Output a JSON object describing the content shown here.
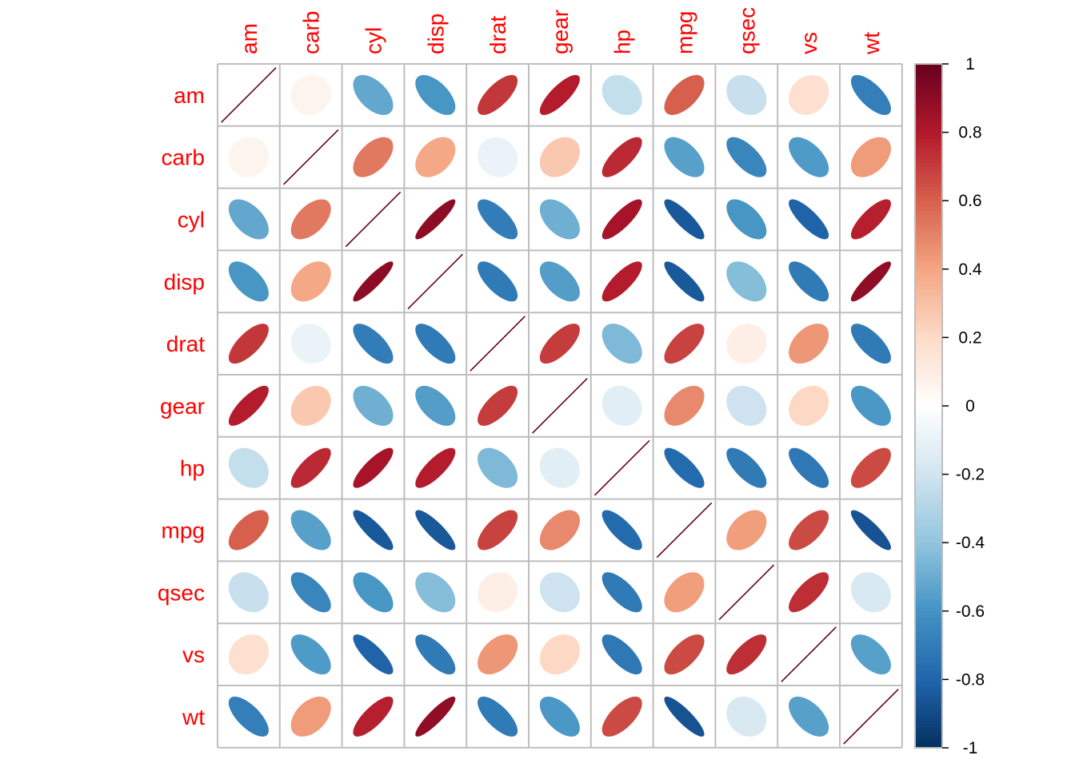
{
  "chart_data": {
    "type": "heatmap",
    "style": "correlation-ellipse",
    "title": "",
    "variables": [
      "am",
      "carb",
      "cyl",
      "disp",
      "drat",
      "gear",
      "hp",
      "mpg",
      "qsec",
      "vs",
      "wt"
    ],
    "matrix": [
      [
        1.0,
        0.06,
        -0.52,
        -0.59,
        0.71,
        0.79,
        -0.24,
        0.6,
        -0.23,
        0.17,
        -0.69
      ],
      [
        0.06,
        1.0,
        0.53,
        0.39,
        -0.09,
        0.27,
        0.75,
        -0.55,
        -0.66,
        -0.57,
        0.43
      ],
      [
        -0.52,
        0.53,
        1.0,
        0.9,
        -0.7,
        -0.49,
        0.83,
        -0.85,
        -0.59,
        -0.81,
        0.78
      ],
      [
        -0.59,
        0.39,
        0.9,
        1.0,
        -0.71,
        -0.56,
        0.79,
        -0.85,
        -0.43,
        -0.71,
        0.89
      ],
      [
        0.71,
        -0.09,
        -0.7,
        -0.71,
        1.0,
        0.7,
        -0.45,
        0.68,
        0.09,
        0.44,
        -0.71
      ],
      [
        0.79,
        0.27,
        -0.49,
        -0.56,
        0.7,
        1.0,
        -0.13,
        0.48,
        -0.21,
        0.21,
        -0.58
      ],
      [
        -0.24,
        0.75,
        0.83,
        0.79,
        -0.45,
        -0.13,
        1.0,
        -0.78,
        -0.71,
        -0.72,
        0.66
      ],
      [
        0.6,
        -0.55,
        -0.85,
        -0.85,
        0.68,
        0.48,
        -0.78,
        1.0,
        0.42,
        0.66,
        -0.87
      ],
      [
        -0.23,
        -0.66,
        -0.59,
        -0.43,
        0.09,
        -0.21,
        -0.71,
        0.42,
        1.0,
        0.74,
        -0.17
      ],
      [
        0.17,
        -0.57,
        -0.81,
        -0.71,
        0.44,
        0.21,
        -0.72,
        0.66,
        0.74,
        1.0,
        -0.55
      ],
      [
        -0.69,
        0.43,
        0.78,
        0.89,
        -0.71,
        -0.58,
        0.66,
        -0.87,
        -0.17,
        -0.55,
        1.0
      ]
    ],
    "colorbar": {
      "range": [
        -1,
        1
      ],
      "ticks": [
        "1",
        "0.8",
        "0.6",
        "0.4",
        "0.2",
        "0",
        "-0.2",
        "-0.4",
        "-0.6",
        "-0.8",
        "-1"
      ],
      "colors": [
        "#053061",
        "#2166AC",
        "#4393C3",
        "#92C5DE",
        "#D1E5F0",
        "#FFFFFF",
        "#FDDBC7",
        "#F4A582",
        "#D6604D",
        "#B2182B",
        "#67001F"
      ]
    },
    "label_color": "#FF0000",
    "grid_color": "#BEBEBE"
  }
}
